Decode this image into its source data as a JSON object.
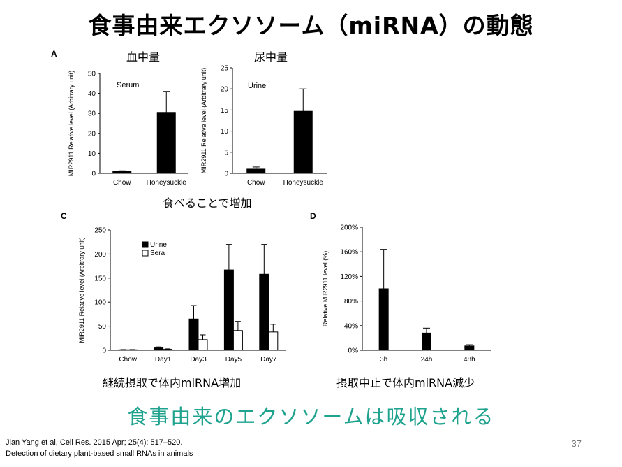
{
  "title": "食事由来エクソソーム（miRNA）の動態",
  "panels": {
    "A": "A",
    "C": "C",
    "D": "D"
  },
  "captions": {
    "serum_amount": "血中量",
    "urine_amount": "尿中量",
    "eat_increase": "食べることで増加",
    "continued_intake": "継続摂取で体内miRNA増加",
    "stop_intake": "摂取中止で体内miRNA減少"
  },
  "takeaway": "食事由来のエクソソームは吸収される",
  "reference": {
    "line1": "Jian Yang et al, Cell Res. 2015 Apr; 25(4): 517–520.",
    "line2": "Detection of dietary plant-based small RNAs in animals"
  },
  "page_number": "37",
  "colors": {
    "takeaway": "#1fa38f",
    "bar_black": "#000000",
    "bar_white": "#ffffff"
  },
  "chart_data": [
    {
      "id": "serum",
      "type": "bar",
      "title": "Serum",
      "ylabel": "MIR2911 Relative level (Arbitrary unit)",
      "ylim": [
        0,
        50
      ],
      "yticks": [
        0,
        10,
        20,
        30,
        40,
        50
      ],
      "categories": [
        "Chow",
        "Honeysuckle"
      ],
      "values": [
        1,
        30.5
      ],
      "errors": [
        0.3,
        10.5
      ]
    },
    {
      "id": "urine",
      "type": "bar",
      "title": "Urine",
      "ylabel": "MIR2911 Relative level (Arbitrary unit)",
      "ylim": [
        0,
        25
      ],
      "yticks": [
        0,
        5,
        10,
        15,
        20,
        25
      ],
      "categories": [
        "Chow",
        "Honeysuckle"
      ],
      "values": [
        1,
        14.7
      ],
      "errors": [
        0.5,
        5.3
      ]
    },
    {
      "id": "time",
      "type": "bar",
      "ylabel": "MIR2911 Relative level (Arbitrary unit)",
      "ylim": [
        0,
        250
      ],
      "yticks": [
        0,
        50,
        100,
        150,
        200,
        250
      ],
      "categories": [
        "Chow",
        "Day1",
        "Day3",
        "Day5",
        "Day7"
      ],
      "legend_position": "top-left",
      "series": [
        {
          "name": "Urine",
          "color": "#000000",
          "values": [
            1,
            5,
            65,
            167,
            158
          ],
          "errors": [
            0.5,
            2,
            28,
            53,
            62
          ]
        },
        {
          "name": "Sera",
          "color": "#ffffff",
          "values": [
            1,
            2,
            22,
            41,
            38
          ],
          "errors": [
            0.5,
            1,
            10,
            19,
            16
          ]
        }
      ]
    },
    {
      "id": "decay",
      "type": "bar",
      "ylabel": "Relative MIR2911 level (%)",
      "ylim": [
        0,
        200
      ],
      "yticks": [
        "0%",
        "40%",
        "80%",
        "120%",
        "160%",
        "200%"
      ],
      "categories": [
        "3h",
        "24h",
        "48h"
      ],
      "values": [
        100,
        28,
        7
      ],
      "errors": [
        64,
        8,
        2
      ]
    }
  ]
}
